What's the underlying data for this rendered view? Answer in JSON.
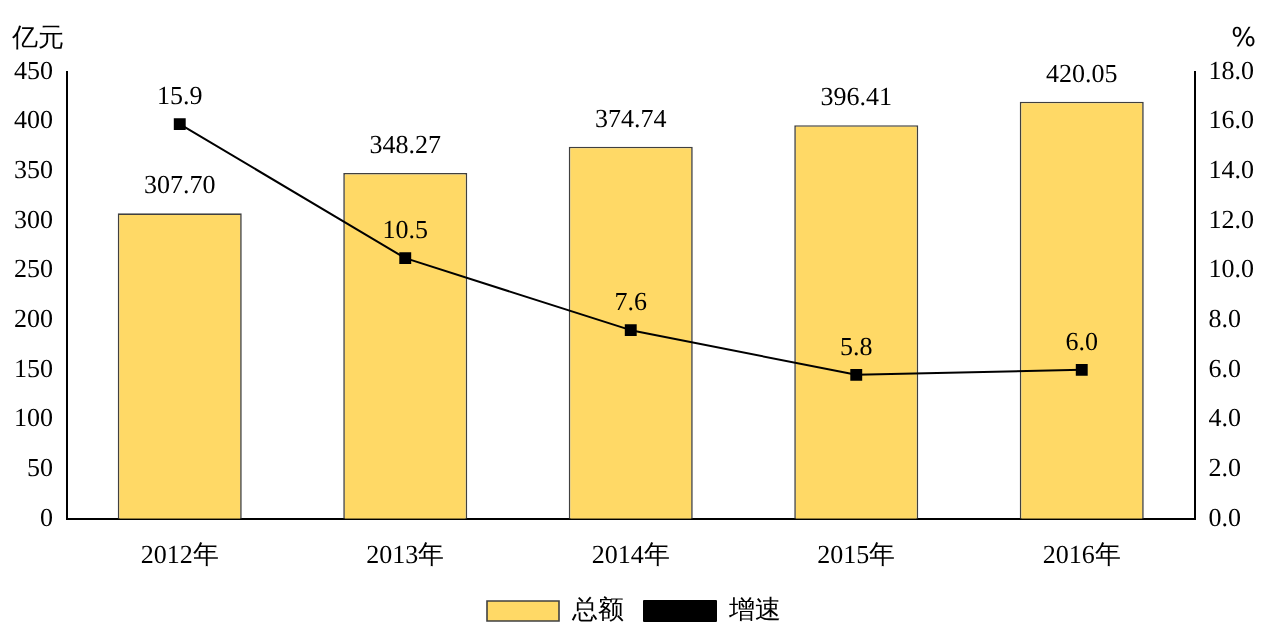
{
  "chart_data": {
    "type": "bar",
    "ylabel": "亿元",
    "y2label": "%",
    "categories": [
      "2012年",
      "2013年",
      "2014年",
      "2015年",
      "2016年"
    ],
    "series": [
      {
        "name": "总额",
        "color": "#ffd966",
        "values": [
          307.7,
          348.27,
          374.74,
          396.41,
          420.05
        ],
        "value_labels": [
          "307.70",
          "348.27",
          "374.74",
          "396.41",
          "420.05"
        ]
      },
      {
        "name": "增速",
        "type": "line",
        "axis": "y2",
        "color": "#000000",
        "marker": "square",
        "line_style": "solid",
        "values": [
          15.9,
          10.5,
          7.6,
          5.8,
          6.0
        ],
        "value_labels": [
          "15.9",
          "10.5",
          "7.6",
          "5.8",
          "6.0"
        ]
      }
    ],
    "ylim": [
      0,
      450
    ],
    "yticks": [
      0,
      50,
      100,
      150,
      200,
      250,
      300,
      350,
      400,
      450
    ],
    "y2lim": [
      0,
      18
    ],
    "y2ticks": [
      {
        "value": 0,
        "label": "0.0"
      },
      {
        "value": 2,
        "label": "2.0"
      },
      {
        "value": 4,
        "label": "4.0"
      },
      {
        "value": 6,
        "label": "6.0"
      },
      {
        "value": 8,
        "label": "8.0"
      },
      {
        "value": 10,
        "label": "10.0"
      },
      {
        "value": 12,
        "label": "12.0"
      },
      {
        "value": 14,
        "label": "14.0"
      },
      {
        "value": 16,
        "label": "16.0"
      },
      {
        "value": 18,
        "label": "18.0"
      }
    ],
    "legend": "bottom"
  }
}
